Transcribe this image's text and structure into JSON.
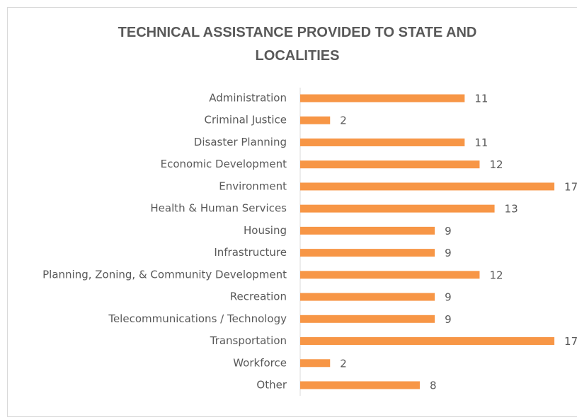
{
  "chart_data": {
    "type": "bar",
    "orientation": "horizontal",
    "title": "TECHNICAL ASSISTANCE PROVIDED TO STATE AND LOCALITIES",
    "categories": [
      "Administration",
      "Criminal Justice",
      "Disaster Planning",
      "Economic Development",
      "Environment",
      "Health & Human Services",
      "Housing",
      "Infrastructure",
      "Planning, Zoning, & Community Development",
      "Recreation",
      "Telecommunications / Technology",
      "Transportation",
      "Workforce",
      "Other"
    ],
    "values": [
      11,
      2,
      11,
      12,
      17,
      13,
      9,
      9,
      12,
      9,
      9,
      17,
      2,
      8
    ],
    "color": "#f79646"
  }
}
